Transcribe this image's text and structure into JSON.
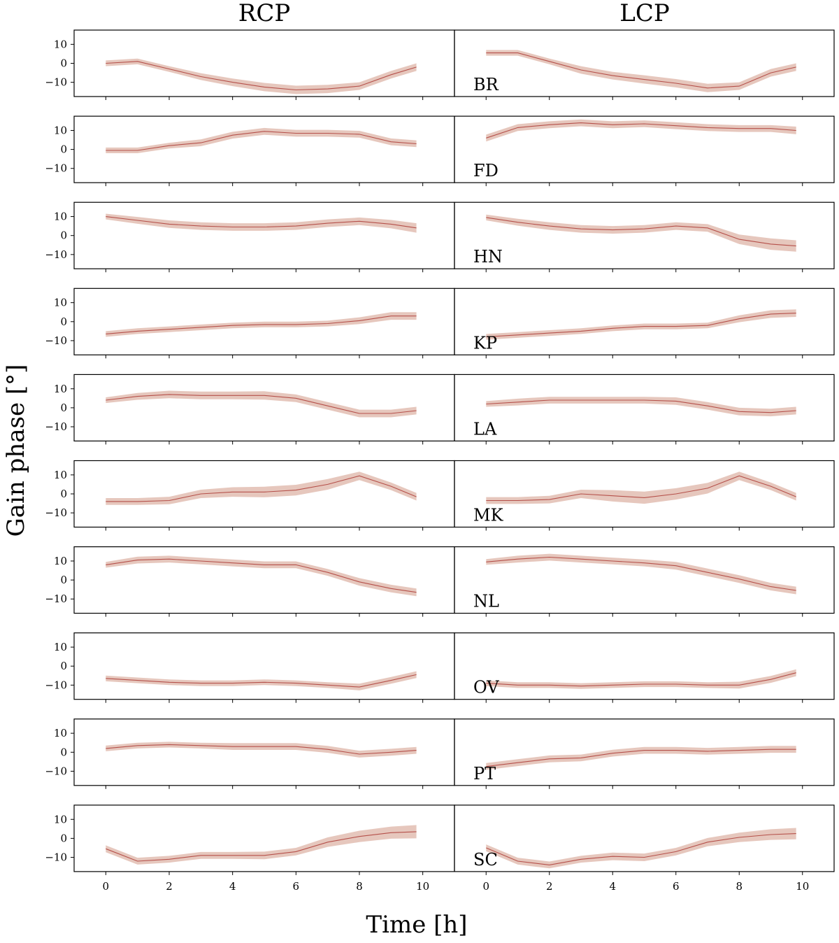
{
  "chart_data": {
    "type": "line",
    "columns": [
      "RCP",
      "LCP"
    ],
    "xlabel": "Time [h]",
    "ylabel": "Gain phase [°]",
    "xlim": [
      -1,
      11
    ],
    "ylim": [
      -17.5,
      17.5
    ],
    "xticks": [
      0,
      2,
      4,
      6,
      8,
      10
    ],
    "yticks": [
      10,
      0,
      -10
    ],
    "ytick_labels": [
      "10",
      "0",
      "−10"
    ],
    "x": [
      0,
      1,
      2,
      3,
      4,
      5,
      6,
      7,
      8,
      9,
      9.8
    ],
    "colors": {
      "band": "#d9a99a",
      "line": "#b5504a",
      "frame": "#000000"
    },
    "stations": [
      {
        "label": "BR",
        "rcp": {
          "values": [
            0,
            1,
            -3,
            -7,
            -10,
            -12.5,
            -14,
            -13.5,
            -12,
            -6,
            -2
          ],
          "width": [
            1.5,
            1.5,
            1.5,
            1.8,
            2,
            2.2,
            2.2,
            2.2,
            2,
            2,
            2
          ]
        },
        "lcp": {
          "values": [
            5.5,
            5.5,
            1,
            -3.5,
            -6.5,
            -8.5,
            -10.5,
            -13,
            -12,
            -5,
            -2
          ],
          "width": [
            1.5,
            1.5,
            1.5,
            2,
            2,
            2.2,
            2.2,
            2.2,
            2,
            2,
            2
          ]
        }
      },
      {
        "label": "FD",
        "rcp": {
          "values": [
            -0.5,
            -0.5,
            2,
            3.5,
            7.5,
            9.5,
            8.5,
            8.5,
            8,
            4,
            3
          ],
          "width": [
            1.5,
            1.5,
            1.5,
            1.8,
            1.8,
            1.8,
            1.8,
            1.8,
            1.8,
            1.8,
            1.8
          ]
        },
        "lcp": {
          "values": [
            6,
            11.5,
            13,
            14,
            13,
            13.5,
            12.5,
            11.5,
            11,
            11,
            10
          ],
          "width": [
            1.8,
            1.8,
            1.8,
            1.8,
            1.8,
            1.8,
            1.8,
            1.8,
            1.8,
            1.8,
            2
          ]
        }
      },
      {
        "label": "HN",
        "rcp": {
          "values": [
            10,
            8,
            6,
            5,
            4.5,
            4.5,
            5,
            6.5,
            7.5,
            6,
            4
          ],
          "width": [
            1.5,
            1.8,
            2,
            2,
            2,
            2,
            2,
            2,
            2,
            2.2,
            2.5
          ]
        },
        "lcp": {
          "values": [
            9.5,
            7,
            5,
            3.5,
            3,
            3.5,
            5,
            4,
            -2,
            -4.5,
            -5.5
          ],
          "width": [
            1.5,
            1.8,
            2,
            2,
            2,
            2,
            2,
            2,
            2.5,
            3,
            3
          ]
        }
      },
      {
        "label": "KP",
        "rcp": {
          "values": [
            -6.5,
            -5,
            -4,
            -3,
            -2,
            -1.5,
            -1.5,
            -1,
            0.5,
            3,
            3
          ],
          "width": [
            1.5,
            1.5,
            1.5,
            1.5,
            1.5,
            1.5,
            1.5,
            1.5,
            1.8,
            2,
            2
          ]
        },
        "lcp": {
          "values": [
            -8,
            -7,
            -6,
            -5,
            -3.5,
            -2.5,
            -2.5,
            -2,
            1.5,
            4,
            4.5
          ],
          "width": [
            1.5,
            1.5,
            1.5,
            1.5,
            1.5,
            1.5,
            1.5,
            1.5,
            1.8,
            2,
            2
          ]
        }
      },
      {
        "label": "LA",
        "rcp": {
          "values": [
            4,
            6,
            7,
            6.5,
            6.5,
            6.5,
            5,
            1,
            -3,
            -3,
            -1.5
          ],
          "width": [
            1.5,
            1.8,
            2,
            2,
            2,
            2.2,
            2,
            2,
            2,
            2,
            2
          ]
        },
        "lcp": {
          "values": [
            2,
            3,
            4,
            4,
            4,
            4,
            3.5,
            1,
            -2,
            -2.5,
            -1.5
          ],
          "width": [
            1.5,
            1.8,
            1.8,
            1.8,
            1.8,
            1.8,
            2,
            2,
            2,
            2,
            2
          ]
        }
      },
      {
        "label": "MK",
        "rcp": {
          "values": [
            -4,
            -4,
            -3.5,
            0,
            1,
            1,
            2,
            5,
            9.5,
            4,
            -1.5
          ],
          "width": [
            1.8,
            1.8,
            2,
            2.2,
            2.5,
            2.8,
            2.8,
            2.8,
            2.2,
            2,
            2
          ]
        },
        "lcp": {
          "values": [
            -3.5,
            -3.5,
            -3,
            0,
            -1,
            -2,
            0,
            3,
            9.5,
            4,
            -1.5
          ],
          "width": [
            1.8,
            1.8,
            2,
            2.2,
            3,
            3.2,
            3,
            2.8,
            2.2,
            2,
            2
          ]
        }
      },
      {
        "label": "NL",
        "rcp": {
          "values": [
            8,
            10.5,
            11,
            10,
            9,
            8,
            8,
            4,
            -1,
            -4.5,
            -6.5
          ],
          "width": [
            1.5,
            1.8,
            1.8,
            1.8,
            1.8,
            1.8,
            1.8,
            1.8,
            2,
            2,
            2
          ]
        },
        "lcp": {
          "values": [
            9.5,
            11,
            12,
            11,
            10,
            9,
            7.5,
            4,
            0.5,
            -3.5,
            -5.5
          ],
          "width": [
            1.5,
            1.8,
            1.8,
            1.8,
            1.8,
            1.8,
            2,
            2,
            2,
            2,
            2
          ]
        }
      },
      {
        "label": "OV",
        "rcp": {
          "values": [
            -6.5,
            -7.5,
            -8.5,
            -9,
            -9,
            -8.5,
            -9,
            -10,
            -11,
            -7.5,
            -4.5
          ],
          "width": [
            1.5,
            1.5,
            1.5,
            1.5,
            1.5,
            1.5,
            1.5,
            1.5,
            1.8,
            1.8,
            1.8
          ]
        },
        "lcp": {
          "values": [
            -9,
            -10,
            -10,
            -10.5,
            -10,
            -9.5,
            -9.5,
            -10,
            -10,
            -7,
            -3.5
          ],
          "width": [
            1.5,
            1.5,
            1.5,
            1.5,
            1.5,
            1.5,
            1.5,
            1.5,
            1.8,
            1.8,
            1.8
          ]
        }
      },
      {
        "label": "PT",
        "rcp": {
          "values": [
            2,
            3.5,
            4,
            3.5,
            3,
            3,
            3,
            1.5,
            -1,
            0,
            1
          ],
          "width": [
            1.5,
            1.5,
            1.5,
            1.5,
            1.8,
            1.8,
            1.8,
            1.8,
            1.8,
            1.8,
            1.8
          ]
        },
        "lcp": {
          "values": [
            -7.5,
            -5.5,
            -3.5,
            -3,
            -0.5,
            1,
            1,
            0.5,
            1,
            1.5,
            1.5
          ],
          "width": [
            1.8,
            1.8,
            1.8,
            1.8,
            1.8,
            1.8,
            1.8,
            1.8,
            1.8,
            1.8,
            1.8
          ]
        }
      },
      {
        "label": "SC",
        "rcp": {
          "values": [
            -5.5,
            -12,
            -11,
            -9,
            -9,
            -9,
            -7,
            -2,
            1,
            3,
            3.5
          ],
          "width": [
            1.8,
            1.8,
            1.8,
            1.8,
            1.8,
            2,
            2,
            2.5,
            3,
            3.2,
            3.5
          ]
        },
        "lcp": {
          "values": [
            -5,
            -12,
            -14,
            -11,
            -9.5,
            -10,
            -7,
            -2,
            0.5,
            2,
            2.5
          ],
          "width": [
            1.8,
            1.8,
            1.8,
            1.8,
            2,
            2,
            2,
            2.2,
            2.5,
            2.8,
            3
          ]
        }
      }
    ]
  }
}
